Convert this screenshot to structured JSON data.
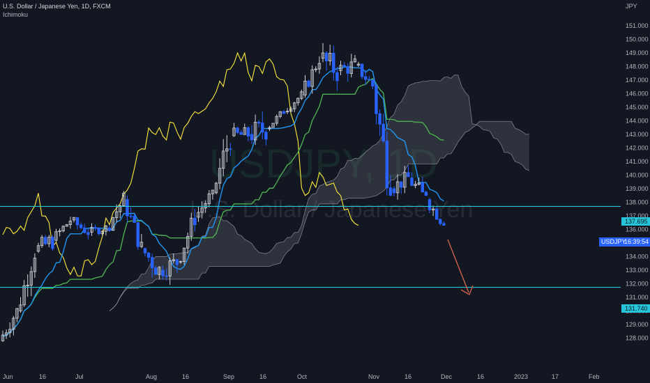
{
  "header": {
    "symbol_line": "U.S. Dollar / Japanese Yen, 1D, FXCM",
    "indicator": "Ichimoku"
  },
  "watermark": {
    "symbol": "USDJPY, 1D",
    "name": "U.S. Dollar / Japanese Yen"
  },
  "price_axis": {
    "currency": "JPY",
    "ticks": [
      "151.000",
      "150.000",
      "149.000",
      "148.000",
      "147.000",
      "146.000",
      "145.000",
      "144.000",
      "143.000",
      "142.000",
      "141.000",
      "140.000",
      "139.000",
      "138.000",
      "137.000",
      "136.000",
      "135.000",
      "134.000",
      "133.000",
      "132.000",
      "131.000",
      "130.000",
      "129.000",
      "128.000"
    ]
  },
  "time_axis": {
    "labels": [
      "Jun",
      "16",
      "Jul",
      "Aug",
      "16",
      "Sep",
      "16",
      "Oct",
      "Nov",
      "16",
      "Dec",
      "16",
      "2023",
      "17",
      "Feb"
    ]
  },
  "price_tags": {
    "resistance": "137.695",
    "support": "131.740",
    "symbol_tag": "USDJPY",
    "countdown": "16:39:54"
  },
  "colors": {
    "background": "#131722",
    "horizontal_lines": "#26c6da",
    "bull_candle": "#d1d4dc",
    "bear_candle": "#2962ff",
    "tenkan": "#2196f3",
    "kijun": "#4caf50",
    "chikou": "#ffeb3b",
    "cloud": "#787b86",
    "arrow": "#d0614d"
  },
  "chart_data": {
    "type": "candlestick",
    "instrument": "USDJPY",
    "timeframe": "1D",
    "ylim": [
      127.5,
      151.8
    ],
    "horizontal_levels": [
      137.695,
      131.74
    ],
    "candles_weekly_approx": [
      {
        "x": "Jun",
        "open": 127.8,
        "high": 130.5,
        "low": 127.3,
        "close": 130.0
      },
      {
        "x": "Jun 8",
        "open": 130.0,
        "high": 134.5,
        "low": 129.8,
        "close": 134.4
      },
      {
        "x": "Jun 16",
        "open": 134.4,
        "high": 135.6,
        "low": 131.5,
        "close": 135.2
      },
      {
        "x": "Jun 24",
        "open": 135.2,
        "high": 137.0,
        "low": 134.5,
        "close": 136.7
      },
      {
        "x": "Jul",
        "open": 136.7,
        "high": 136.9,
        "low": 134.6,
        "close": 135.8
      },
      {
        "x": "Jul 8",
        "open": 135.8,
        "high": 137.3,
        "low": 135.5,
        "close": 136.1
      },
      {
        "x": "Jul 16",
        "open": 136.1,
        "high": 139.3,
        "low": 135.9,
        "close": 138.2
      },
      {
        "x": "Jul 24",
        "open": 138.2,
        "high": 138.5,
        "low": 134.5,
        "close": 134.6
      },
      {
        "x": "Aug",
        "open": 134.6,
        "high": 135.5,
        "low": 130.5,
        "close": 133.0
      },
      {
        "x": "Aug 8",
        "open": 133.0,
        "high": 135.6,
        "low": 131.7,
        "close": 133.6
      },
      {
        "x": "Aug 16",
        "open": 133.6,
        "high": 137.6,
        "low": 133.4,
        "close": 136.9
      },
      {
        "x": "Aug 24",
        "open": 136.9,
        "high": 138.9,
        "low": 136.1,
        "close": 138.7
      },
      {
        "x": "Sep",
        "open": 138.7,
        "high": 144.9,
        "low": 138.6,
        "close": 142.9
      },
      {
        "x": "Sep 8",
        "open": 142.9,
        "high": 144.7,
        "low": 141.5,
        "close": 143.0
      },
      {
        "x": "Sep 16",
        "open": 143.0,
        "high": 145.5,
        "low": 140.3,
        "close": 143.4
      },
      {
        "x": "Sep 24",
        "open": 143.4,
        "high": 144.9,
        "low": 143.2,
        "close": 144.7
      },
      {
        "x": "Oct",
        "open": 144.7,
        "high": 146.3,
        "low": 144.5,
        "close": 145.9
      },
      {
        "x": "Oct 8",
        "open": 145.9,
        "high": 148.8,
        "low": 145.7,
        "close": 148.6
      },
      {
        "x": "Oct 16",
        "open": 148.6,
        "high": 151.9,
        "low": 146.2,
        "close": 147.7
      },
      {
        "x": "Oct 24",
        "open": 147.7,
        "high": 149.0,
        "low": 145.4,
        "close": 148.1
      },
      {
        "x": "Nov",
        "open": 148.1,
        "high": 148.8,
        "low": 146.0,
        "close": 146.6
      },
      {
        "x": "Nov 8",
        "open": 146.6,
        "high": 146.8,
        "low": 138.5,
        "close": 139.0
      },
      {
        "x": "Nov 16",
        "open": 139.0,
        "high": 140.9,
        "low": 137.7,
        "close": 139.8
      },
      {
        "x": "Nov 24",
        "open": 139.8,
        "high": 142.2,
        "low": 138.5,
        "close": 138.2
      },
      {
        "x": "Dec",
        "open": 138.2,
        "high": 138.9,
        "low": 136.3,
        "close": 136.4
      }
    ],
    "annotation": "down-arrow toward 131.740"
  }
}
